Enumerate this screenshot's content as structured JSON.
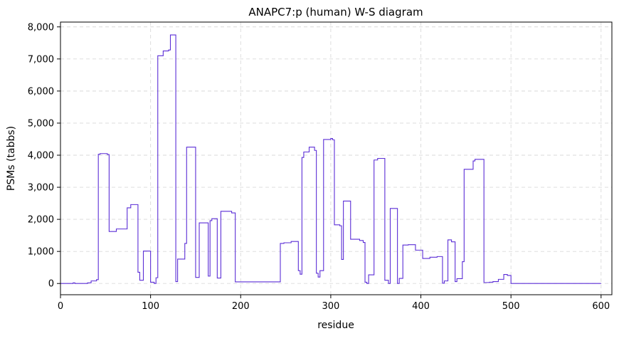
{
  "chart_data": {
    "type": "line",
    "title": "ANAPC7:p (human) W-S diagram",
    "xlabel": "residue",
    "ylabel": "PSMs (tabbs)",
    "xlim": [
      0,
      612
    ],
    "ylim": [
      -350,
      8150
    ],
    "xticks": [
      0,
      100,
      200,
      300,
      400,
      500,
      600
    ],
    "xtick_labels": [
      "0",
      "100",
      "200",
      "300",
      "400",
      "500",
      "600"
    ],
    "yticks": [
      0,
      1000,
      2000,
      3000,
      4000,
      5000,
      6000,
      7000,
      8000
    ],
    "ytick_labels": [
      "0",
      "1,000",
      "2,000",
      "3,000",
      "4,000",
      "5,000",
      "6,000",
      "7,000",
      "8,000"
    ],
    "grid": true,
    "series": [
      {
        "color": "#5b2ed6",
        "step": true,
        "points": [
          [
            0,
            0
          ],
          [
            14,
            0
          ],
          [
            14,
            20
          ],
          [
            16,
            20
          ],
          [
            16,
            0
          ],
          [
            30,
            0
          ],
          [
            30,
            20
          ],
          [
            34,
            20
          ],
          [
            34,
            80
          ],
          [
            40,
            80
          ],
          [
            40,
            120
          ],
          [
            42,
            120
          ],
          [
            42,
            4030
          ],
          [
            44,
            4030
          ],
          [
            44,
            4050
          ],
          [
            52,
            4050
          ],
          [
            52,
            4020
          ],
          [
            54,
            4020
          ],
          [
            54,
            1620
          ],
          [
            62,
            1620
          ],
          [
            62,
            1700
          ],
          [
            74,
            1700
          ],
          [
            74,
            2360
          ],
          [
            78,
            2360
          ],
          [
            78,
            2460
          ],
          [
            86,
            2460
          ],
          [
            86,
            350
          ],
          [
            88,
            350
          ],
          [
            88,
            100
          ],
          [
            92,
            100
          ],
          [
            92,
            1010
          ],
          [
            100,
            1010
          ],
          [
            100,
            40
          ],
          [
            104,
            40
          ],
          [
            104,
            0
          ],
          [
            106,
            0
          ],
          [
            106,
            180
          ],
          [
            108,
            180
          ],
          [
            108,
            7100
          ],
          [
            114,
            7100
          ],
          [
            114,
            7250
          ],
          [
            120,
            7250
          ],
          [
            120,
            7280
          ],
          [
            122,
            7280
          ],
          [
            122,
            7750
          ],
          [
            128,
            7750
          ],
          [
            128,
            60
          ],
          [
            130,
            60
          ],
          [
            130,
            760
          ],
          [
            138,
            760
          ],
          [
            138,
            1250
          ],
          [
            140,
            1250
          ],
          [
            140,
            4250
          ],
          [
            150,
            4250
          ],
          [
            150,
            190
          ],
          [
            154,
            190
          ],
          [
            154,
            1890
          ],
          [
            164,
            1890
          ],
          [
            164,
            230
          ],
          [
            166,
            230
          ],
          [
            166,
            1960
          ],
          [
            168,
            1960
          ],
          [
            168,
            2020
          ],
          [
            174,
            2020
          ],
          [
            174,
            170
          ],
          [
            178,
            170
          ],
          [
            178,
            2250
          ],
          [
            190,
            2250
          ],
          [
            190,
            2200
          ],
          [
            194,
            2200
          ],
          [
            194,
            50
          ],
          [
            244,
            50
          ],
          [
            244,
            1250
          ],
          [
            248,
            1250
          ],
          [
            248,
            1270
          ],
          [
            256,
            1270
          ],
          [
            256,
            1310
          ],
          [
            264,
            1310
          ],
          [
            264,
            400
          ],
          [
            266,
            400
          ],
          [
            266,
            290
          ],
          [
            268,
            290
          ],
          [
            268,
            3930
          ],
          [
            270,
            3930
          ],
          [
            270,
            4100
          ],
          [
            276,
            4100
          ],
          [
            276,
            4250
          ],
          [
            282,
            4250
          ],
          [
            282,
            4150
          ],
          [
            284,
            4150
          ],
          [
            284,
            320
          ],
          [
            286,
            320
          ],
          [
            286,
            200
          ],
          [
            288,
            200
          ],
          [
            288,
            400
          ],
          [
            292,
            400
          ],
          [
            292,
            4490
          ],
          [
            300,
            4490
          ],
          [
            300,
            4520
          ],
          [
            302,
            4520
          ],
          [
            302,
            4480
          ],
          [
            304,
            4480
          ],
          [
            304,
            1830
          ],
          [
            310,
            1830
          ],
          [
            310,
            1800
          ],
          [
            312,
            1800
          ],
          [
            312,
            750
          ],
          [
            314,
            750
          ],
          [
            314,
            2570
          ],
          [
            322,
            2570
          ],
          [
            322,
            1380
          ],
          [
            332,
            1380
          ],
          [
            332,
            1340
          ],
          [
            336,
            1340
          ],
          [
            336,
            1280
          ],
          [
            338,
            1280
          ],
          [
            338,
            40
          ],
          [
            340,
            40
          ],
          [
            340,
            0
          ],
          [
            342,
            0
          ],
          [
            342,
            270
          ],
          [
            348,
            270
          ],
          [
            348,
            3850
          ],
          [
            352,
            3850
          ],
          [
            352,
            3900
          ],
          [
            360,
            3900
          ],
          [
            360,
            100
          ],
          [
            364,
            100
          ],
          [
            364,
            0
          ],
          [
            366,
            0
          ],
          [
            366,
            2340
          ],
          [
            374,
            2340
          ],
          [
            374,
            0
          ],
          [
            376,
            0
          ],
          [
            376,
            160
          ],
          [
            380,
            160
          ],
          [
            380,
            1200
          ],
          [
            386,
            1200
          ],
          [
            386,
            1210
          ],
          [
            394,
            1210
          ],
          [
            394,
            1040
          ],
          [
            402,
            1040
          ],
          [
            402,
            780
          ],
          [
            410,
            780
          ],
          [
            410,
            820
          ],
          [
            418,
            820
          ],
          [
            418,
            840
          ],
          [
            424,
            840
          ],
          [
            424,
            10
          ],
          [
            426,
            10
          ],
          [
            426,
            80
          ],
          [
            430,
            80
          ],
          [
            430,
            1360
          ],
          [
            434,
            1360
          ],
          [
            434,
            1300
          ],
          [
            438,
            1300
          ],
          [
            438,
            60
          ],
          [
            440,
            60
          ],
          [
            440,
            150
          ],
          [
            446,
            150
          ],
          [
            446,
            680
          ],
          [
            448,
            680
          ],
          [
            448,
            3560
          ],
          [
            458,
            3560
          ],
          [
            458,
            3820
          ],
          [
            460,
            3820
          ],
          [
            460,
            3870
          ],
          [
            470,
            3870
          ],
          [
            470,
            30
          ],
          [
            476,
            30
          ],
          [
            476,
            40
          ],
          [
            480,
            40
          ],
          [
            480,
            60
          ],
          [
            486,
            60
          ],
          [
            486,
            130
          ],
          [
            492,
            130
          ],
          [
            492,
            280
          ],
          [
            496,
            280
          ],
          [
            496,
            250
          ],
          [
            500,
            250
          ],
          [
            500,
            0
          ],
          [
            600,
            0
          ]
        ]
      }
    ]
  }
}
